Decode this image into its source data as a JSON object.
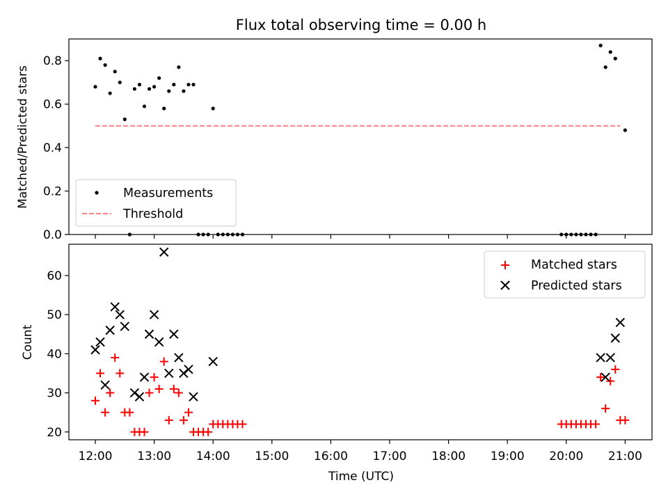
{
  "chart_data": [
    {
      "type": "scatter",
      "title": "Flux total observing time = 0.00 h",
      "xlabel": "",
      "ylabel": "Matched/Predicted stars",
      "ylim": [
        0,
        0.9
      ],
      "yticks": [
        "0.0",
        "0.2",
        "0.4",
        "0.6",
        "0.8"
      ],
      "ytick_values": [
        0,
        0.2,
        0.4,
        0.6,
        0.8
      ],
      "legend_position": "lower-left",
      "series": [
        {
          "name": "Measurements",
          "marker": "dot",
          "color": "#000000",
          "x": [
            "12:00",
            "12:05",
            "12:10",
            "12:15",
            "12:20",
            "12:25",
            "12:30",
            "12:35",
            "12:40",
            "12:45",
            "12:50",
            "12:55",
            "13:00",
            "13:05",
            "13:10",
            "13:15",
            "13:20",
            "13:25",
            "13:30",
            "13:35",
            "13:40",
            "13:45",
            "13:50",
            "13:55",
            "14:00",
            "14:05",
            "14:10",
            "14:15",
            "14:20",
            "14:25",
            "14:30",
            "19:55",
            "20:00",
            "20:05",
            "20:10",
            "20:15",
            "20:20",
            "20:25",
            "20:30",
            "20:35",
            "20:40",
            "20:45",
            "20:50",
            "21:00"
          ],
          "y": [
            0.68,
            0.81,
            0.78,
            0.65,
            0.75,
            0.7,
            0.53,
            0.0,
            0.67,
            0.69,
            0.59,
            0.67,
            0.68,
            0.72,
            0.58,
            0.66,
            0.69,
            0.77,
            0.66,
            0.69,
            0.69,
            0.0,
            0.0,
            0.0,
            0.58,
            0.0,
            0.0,
            0.0,
            0.0,
            0.0,
            0.0,
            0.0,
            0.0,
            0.0,
            0.0,
            0.0,
            0.0,
            0.0,
            0.0,
            0.87,
            0.77,
            0.84,
            0.81,
            0.48
          ]
        },
        {
          "name": "Threshold",
          "marker": "dashed-line",
          "color": "#ff7f7f",
          "x": [
            "12:00",
            "20:55"
          ],
          "y": [
            0.5,
            0.5
          ]
        }
      ]
    },
    {
      "type": "scatter",
      "title": "",
      "xlabel": "Time (UTC)",
      "ylabel": "Count",
      "ylim": [
        18,
        68
      ],
      "yticks": [
        "20",
        "30",
        "40",
        "50",
        "60"
      ],
      "ytick_values": [
        20,
        30,
        40,
        50,
        60
      ],
      "xticks": [
        "12:00",
        "13:00",
        "14:00",
        "15:00",
        "16:00",
        "17:00",
        "18:00",
        "19:00",
        "20:00",
        "21:00"
      ],
      "legend_position": "top-right",
      "series": [
        {
          "name": "Matched stars",
          "marker": "plus",
          "color": "#ff0000",
          "x": [
            "12:00",
            "12:05",
            "12:10",
            "12:15",
            "12:20",
            "12:25",
            "12:30",
            "12:35",
            "12:40",
            "12:45",
            "12:50",
            "12:55",
            "13:00",
            "13:05",
            "13:10",
            "13:15",
            "13:20",
            "13:25",
            "13:30",
            "13:35",
            "13:40",
            "13:45",
            "13:50",
            "13:55",
            "14:00",
            "14:05",
            "14:10",
            "14:15",
            "14:20",
            "14:25",
            "14:30",
            "19:55",
            "20:00",
            "20:05",
            "20:10",
            "20:15",
            "20:20",
            "20:25",
            "20:30",
            "20:35",
            "20:40",
            "20:45",
            "20:50",
            "20:55",
            "21:00"
          ],
          "y": [
            28,
            35,
            25,
            30,
            39,
            35,
            25,
            25,
            20,
            20,
            20,
            30,
            34,
            31,
            38,
            23,
            31,
            30,
            23,
            25,
            20,
            20,
            20,
            20,
            22,
            22,
            22,
            22,
            22,
            22,
            22,
            22,
            22,
            22,
            22,
            22,
            22,
            22,
            22,
            34,
            26,
            33,
            36,
            23,
            23
          ]
        },
        {
          "name": "Predicted stars",
          "marker": "x",
          "color": "#000000",
          "x": [
            "12:00",
            "12:05",
            "12:10",
            "12:15",
            "12:20",
            "12:25",
            "12:30",
            "12:40",
            "12:45",
            "12:50",
            "12:55",
            "13:00",
            "13:05",
            "13:10",
            "13:15",
            "13:20",
            "13:25",
            "13:30",
            "13:35",
            "13:40",
            "14:00",
            "20:35",
            "20:40",
            "20:45",
            "20:50",
            "20:55"
          ],
          "y": [
            41,
            43,
            32,
            46,
            52,
            50,
            47,
            30,
            29,
            34,
            45,
            50,
            43,
            66,
            35,
            45,
            39,
            35,
            36,
            29,
            38,
            39,
            34,
            39,
            44,
            48
          ]
        }
      ]
    }
  ]
}
